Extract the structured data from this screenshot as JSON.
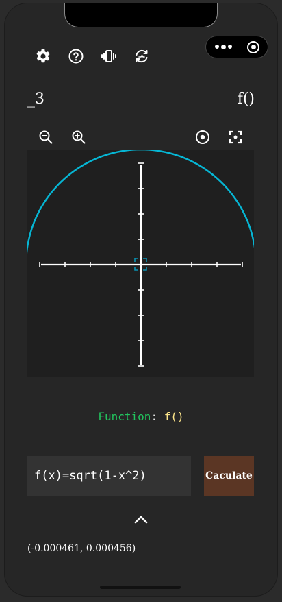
{
  "header": {
    "left_title": "_3",
    "right_title": "f()"
  },
  "toolbar": {
    "icons": [
      "gear-icon",
      "help-icon",
      "vibrate-icon",
      "refresh-icon"
    ]
  },
  "graph_controls": {
    "icons": [
      "zoom-out-icon",
      "zoom-in-icon",
      "center-icon",
      "focus-icon"
    ]
  },
  "graph": {
    "function": "sqrt(1-x^2)",
    "curve_color": "#06b6d4",
    "axis_color": "#ffffff"
  },
  "function_info": {
    "label": "Function",
    "colon": ":",
    "name": "f()"
  },
  "input": {
    "value": "f(x)=sqrt(1-x^2)"
  },
  "calculate_button": {
    "label": "Caculate"
  },
  "coordinates": "(-0.000461, 0.000456)",
  "colors": {
    "background": "#262626",
    "canvas": "#1f1f1f",
    "function_label": "#22c55e",
    "function_name": "#fde68a",
    "button": "#5b3624"
  }
}
